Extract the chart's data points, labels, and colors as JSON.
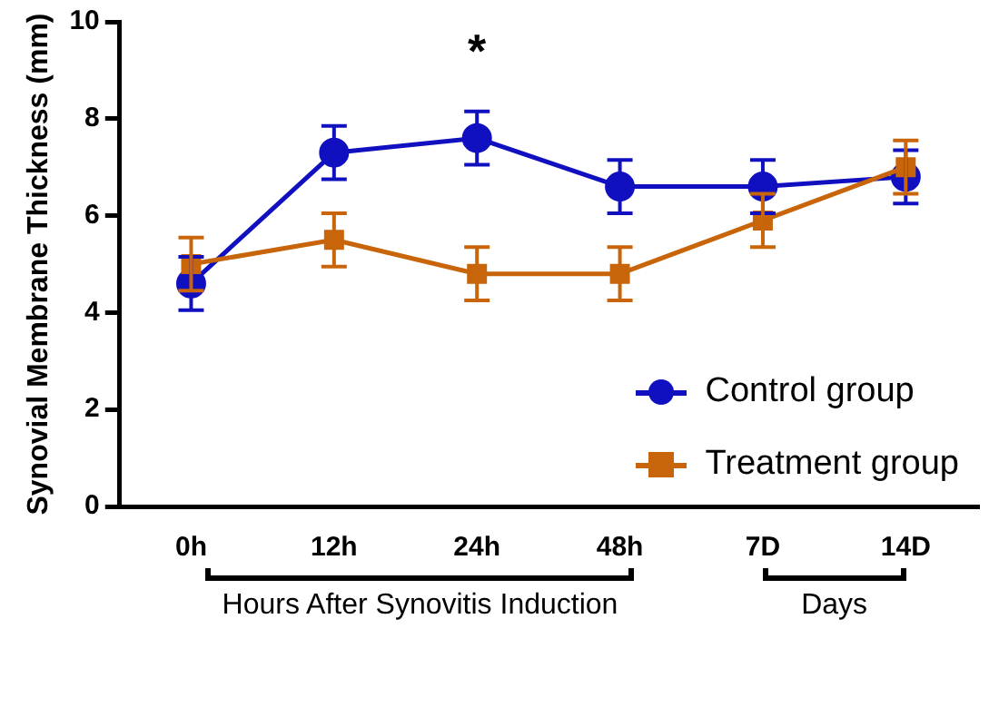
{
  "chart_data": {
    "type": "line",
    "ylabel": "Synovial Membrane Thickness (mm)",
    "categories": [
      "0h",
      "12h",
      "24h",
      "48h",
      "7D",
      "14D"
    ],
    "series": [
      {
        "name": "Control group",
        "color": "#1010c0",
        "marker": "circle",
        "values": [
          4.6,
          7.3,
          7.6,
          6.6,
          6.6,
          6.8
        ],
        "errors": [
          0.55,
          0.55,
          0.55,
          0.55,
          0.55,
          0.55
        ]
      },
      {
        "name": "Treatment group",
        "color": "#c8650a",
        "marker": "square",
        "values": [
          5.0,
          5.5,
          4.8,
          4.8,
          5.9,
          7.0
        ],
        "errors": [
          0.55,
          0.55,
          0.55,
          0.55,
          0.55,
          0.55
        ]
      }
    ],
    "ylim": [
      0,
      10
    ],
    "yticks": [
      0,
      2,
      4,
      6,
      8,
      10
    ],
    "grid": false,
    "legend": "right",
    "annotations": [
      "*",
      "Hours After Synovitis Induction",
      "Days"
    ]
  }
}
